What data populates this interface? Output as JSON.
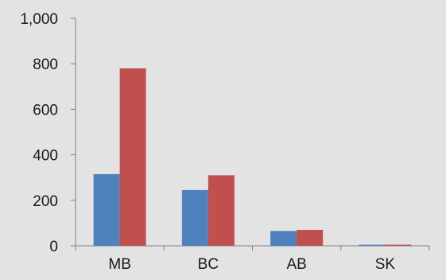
{
  "chart_data": {
    "type": "bar",
    "title": "",
    "xlabel": "",
    "ylabel": "",
    "categories": [
      "MB",
      "BC",
      "AB",
      "SK"
    ],
    "series": [
      {
        "values": [
          315,
          245,
          65,
          5
        ],
        "color": "#4f81bd"
      },
      {
        "values": [
          780,
          310,
          70,
          5
        ],
        "color": "#c0504d"
      }
    ],
    "ylim": [
      0,
      1000
    ],
    "yticks": [
      0,
      200,
      400,
      600,
      800,
      1000
    ],
    "ytick_labels": [
      "0",
      "200",
      "400",
      "600",
      "800",
      "1,000"
    ],
    "grid": false,
    "legend": "none",
    "background": "#e3e3e3"
  }
}
